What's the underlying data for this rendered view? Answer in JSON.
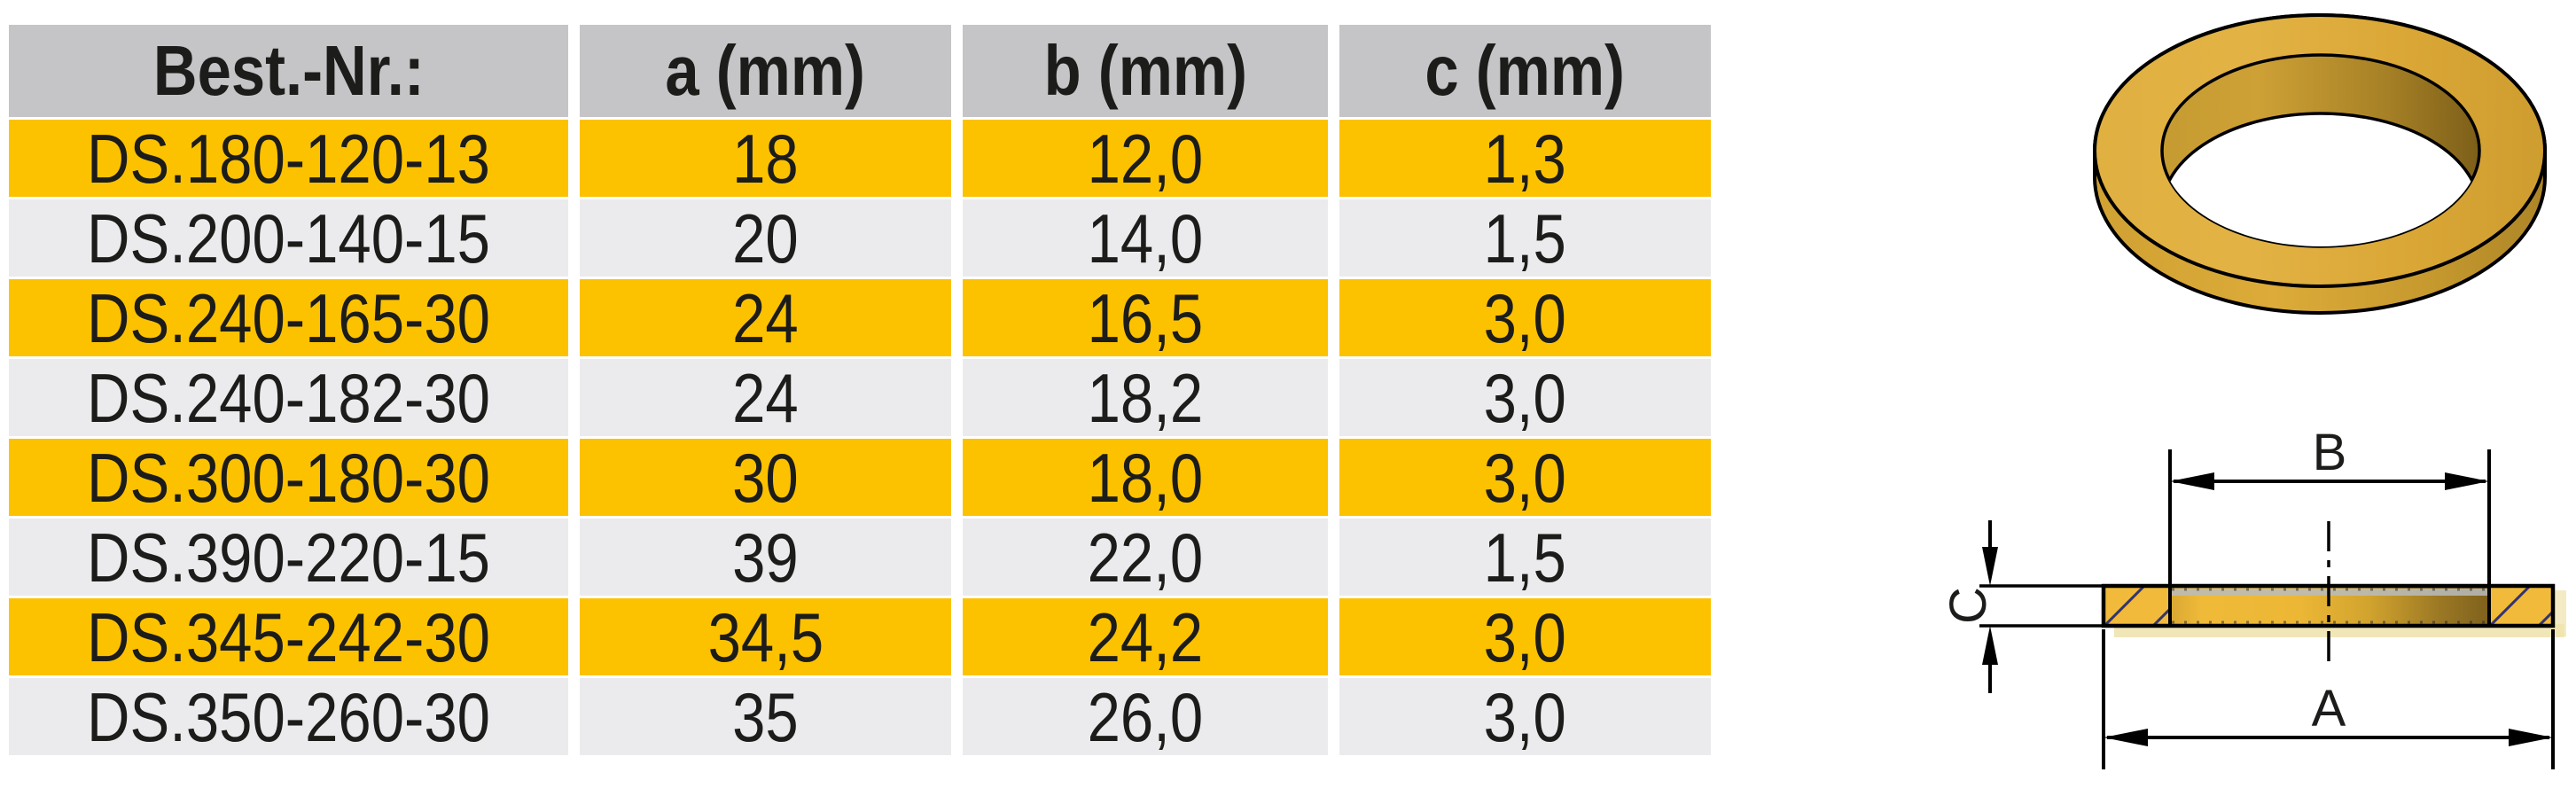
{
  "table": {
    "headers": [
      "Best.-Nr.:",
      "a (mm)",
      "b (mm)",
      "c (mm)"
    ],
    "rows": [
      [
        "DS.180-120-13",
        "18",
        "12,0",
        "1,3"
      ],
      [
        "DS.200-140-15",
        "20",
        "14,0",
        "1,5"
      ],
      [
        "DS.240-165-30",
        "24",
        "16,5",
        "3,0"
      ],
      [
        "DS.240-182-30",
        "24",
        "18,2",
        "3,0"
      ],
      [
        "DS.300-180-30",
        "30",
        "18,0",
        "3,0"
      ],
      [
        "DS.390-220-15",
        "39",
        "22,0",
        "1,5"
      ],
      [
        "DS.345-242-30",
        "34,5",
        "24,2",
        "3,0"
      ],
      [
        "DS.350-260-30",
        "35",
        "26,0",
        "3,0"
      ]
    ]
  },
  "diagram": {
    "labels": {
      "outer_diameter": "A",
      "inner_diameter": "B",
      "thickness": "C"
    }
  },
  "colors": {
    "accentYellow": "#FCC200",
    "headerGray": "#C5C5C7",
    "rowGray": "#EBEBED",
    "textBlack": "#1C1C1A",
    "goldFace": "#DFAE3C",
    "goldSide": "#D2A435",
    "goldDark": "#8A691C",
    "hatchBlue": "#34346E",
    "lineBlack": "#000000"
  }
}
